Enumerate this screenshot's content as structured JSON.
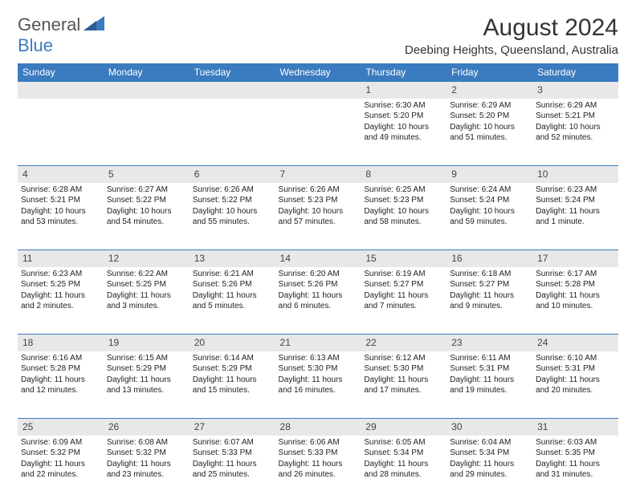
{
  "logo": {
    "part1": "General",
    "part2": "Blue"
  },
  "title": "August 2024",
  "location": "Deebing Heights, Queensland, Australia",
  "colors": {
    "accent": "#3b7bbf",
    "header_bg": "#3b7bbf",
    "daynum_bg": "#e8e8e8",
    "text": "#222222",
    "background": "#ffffff"
  },
  "weekdays": [
    "Sunday",
    "Monday",
    "Tuesday",
    "Wednesday",
    "Thursday",
    "Friday",
    "Saturday"
  ],
  "weeks": [
    {
      "nums": [
        "",
        "",
        "",
        "",
        "1",
        "2",
        "3"
      ],
      "cells": [
        {
          "sunrise": "",
          "sunset": "",
          "daylight1": "",
          "daylight2": ""
        },
        {
          "sunrise": "",
          "sunset": "",
          "daylight1": "",
          "daylight2": ""
        },
        {
          "sunrise": "",
          "sunset": "",
          "daylight1": "",
          "daylight2": ""
        },
        {
          "sunrise": "",
          "sunset": "",
          "daylight1": "",
          "daylight2": ""
        },
        {
          "sunrise": "Sunrise: 6:30 AM",
          "sunset": "Sunset: 5:20 PM",
          "daylight1": "Daylight: 10 hours",
          "daylight2": "and 49 minutes."
        },
        {
          "sunrise": "Sunrise: 6:29 AM",
          "sunset": "Sunset: 5:20 PM",
          "daylight1": "Daylight: 10 hours",
          "daylight2": "and 51 minutes."
        },
        {
          "sunrise": "Sunrise: 6:29 AM",
          "sunset": "Sunset: 5:21 PM",
          "daylight1": "Daylight: 10 hours",
          "daylight2": "and 52 minutes."
        }
      ]
    },
    {
      "nums": [
        "4",
        "5",
        "6",
        "7",
        "8",
        "9",
        "10"
      ],
      "cells": [
        {
          "sunrise": "Sunrise: 6:28 AM",
          "sunset": "Sunset: 5:21 PM",
          "daylight1": "Daylight: 10 hours",
          "daylight2": "and 53 minutes."
        },
        {
          "sunrise": "Sunrise: 6:27 AM",
          "sunset": "Sunset: 5:22 PM",
          "daylight1": "Daylight: 10 hours",
          "daylight2": "and 54 minutes."
        },
        {
          "sunrise": "Sunrise: 6:26 AM",
          "sunset": "Sunset: 5:22 PM",
          "daylight1": "Daylight: 10 hours",
          "daylight2": "and 55 minutes."
        },
        {
          "sunrise": "Sunrise: 6:26 AM",
          "sunset": "Sunset: 5:23 PM",
          "daylight1": "Daylight: 10 hours",
          "daylight2": "and 57 minutes."
        },
        {
          "sunrise": "Sunrise: 6:25 AM",
          "sunset": "Sunset: 5:23 PM",
          "daylight1": "Daylight: 10 hours",
          "daylight2": "and 58 minutes."
        },
        {
          "sunrise": "Sunrise: 6:24 AM",
          "sunset": "Sunset: 5:24 PM",
          "daylight1": "Daylight: 10 hours",
          "daylight2": "and 59 minutes."
        },
        {
          "sunrise": "Sunrise: 6:23 AM",
          "sunset": "Sunset: 5:24 PM",
          "daylight1": "Daylight: 11 hours",
          "daylight2": "and 1 minute."
        }
      ]
    },
    {
      "nums": [
        "11",
        "12",
        "13",
        "14",
        "15",
        "16",
        "17"
      ],
      "cells": [
        {
          "sunrise": "Sunrise: 6:23 AM",
          "sunset": "Sunset: 5:25 PM",
          "daylight1": "Daylight: 11 hours",
          "daylight2": "and 2 minutes."
        },
        {
          "sunrise": "Sunrise: 6:22 AM",
          "sunset": "Sunset: 5:25 PM",
          "daylight1": "Daylight: 11 hours",
          "daylight2": "and 3 minutes."
        },
        {
          "sunrise": "Sunrise: 6:21 AM",
          "sunset": "Sunset: 5:26 PM",
          "daylight1": "Daylight: 11 hours",
          "daylight2": "and 5 minutes."
        },
        {
          "sunrise": "Sunrise: 6:20 AM",
          "sunset": "Sunset: 5:26 PM",
          "daylight1": "Daylight: 11 hours",
          "daylight2": "and 6 minutes."
        },
        {
          "sunrise": "Sunrise: 6:19 AM",
          "sunset": "Sunset: 5:27 PM",
          "daylight1": "Daylight: 11 hours",
          "daylight2": "and 7 minutes."
        },
        {
          "sunrise": "Sunrise: 6:18 AM",
          "sunset": "Sunset: 5:27 PM",
          "daylight1": "Daylight: 11 hours",
          "daylight2": "and 9 minutes."
        },
        {
          "sunrise": "Sunrise: 6:17 AM",
          "sunset": "Sunset: 5:28 PM",
          "daylight1": "Daylight: 11 hours",
          "daylight2": "and 10 minutes."
        }
      ]
    },
    {
      "nums": [
        "18",
        "19",
        "20",
        "21",
        "22",
        "23",
        "24"
      ],
      "cells": [
        {
          "sunrise": "Sunrise: 6:16 AM",
          "sunset": "Sunset: 5:28 PM",
          "daylight1": "Daylight: 11 hours",
          "daylight2": "and 12 minutes."
        },
        {
          "sunrise": "Sunrise: 6:15 AM",
          "sunset": "Sunset: 5:29 PM",
          "daylight1": "Daylight: 11 hours",
          "daylight2": "and 13 minutes."
        },
        {
          "sunrise": "Sunrise: 6:14 AM",
          "sunset": "Sunset: 5:29 PM",
          "daylight1": "Daylight: 11 hours",
          "daylight2": "and 15 minutes."
        },
        {
          "sunrise": "Sunrise: 6:13 AM",
          "sunset": "Sunset: 5:30 PM",
          "daylight1": "Daylight: 11 hours",
          "daylight2": "and 16 minutes."
        },
        {
          "sunrise": "Sunrise: 6:12 AM",
          "sunset": "Sunset: 5:30 PM",
          "daylight1": "Daylight: 11 hours",
          "daylight2": "and 17 minutes."
        },
        {
          "sunrise": "Sunrise: 6:11 AM",
          "sunset": "Sunset: 5:31 PM",
          "daylight1": "Daylight: 11 hours",
          "daylight2": "and 19 minutes."
        },
        {
          "sunrise": "Sunrise: 6:10 AM",
          "sunset": "Sunset: 5:31 PM",
          "daylight1": "Daylight: 11 hours",
          "daylight2": "and 20 minutes."
        }
      ]
    },
    {
      "nums": [
        "25",
        "26",
        "27",
        "28",
        "29",
        "30",
        "31"
      ],
      "cells": [
        {
          "sunrise": "Sunrise: 6:09 AM",
          "sunset": "Sunset: 5:32 PM",
          "daylight1": "Daylight: 11 hours",
          "daylight2": "and 22 minutes."
        },
        {
          "sunrise": "Sunrise: 6:08 AM",
          "sunset": "Sunset: 5:32 PM",
          "daylight1": "Daylight: 11 hours",
          "daylight2": "and 23 minutes."
        },
        {
          "sunrise": "Sunrise: 6:07 AM",
          "sunset": "Sunset: 5:33 PM",
          "daylight1": "Daylight: 11 hours",
          "daylight2": "and 25 minutes."
        },
        {
          "sunrise": "Sunrise: 6:06 AM",
          "sunset": "Sunset: 5:33 PM",
          "daylight1": "Daylight: 11 hours",
          "daylight2": "and 26 minutes."
        },
        {
          "sunrise": "Sunrise: 6:05 AM",
          "sunset": "Sunset: 5:34 PM",
          "daylight1": "Daylight: 11 hours",
          "daylight2": "and 28 minutes."
        },
        {
          "sunrise": "Sunrise: 6:04 AM",
          "sunset": "Sunset: 5:34 PM",
          "daylight1": "Daylight: 11 hours",
          "daylight2": "and 29 minutes."
        },
        {
          "sunrise": "Sunrise: 6:03 AM",
          "sunset": "Sunset: 5:35 PM",
          "daylight1": "Daylight: 11 hours",
          "daylight2": "and 31 minutes."
        }
      ]
    }
  ]
}
